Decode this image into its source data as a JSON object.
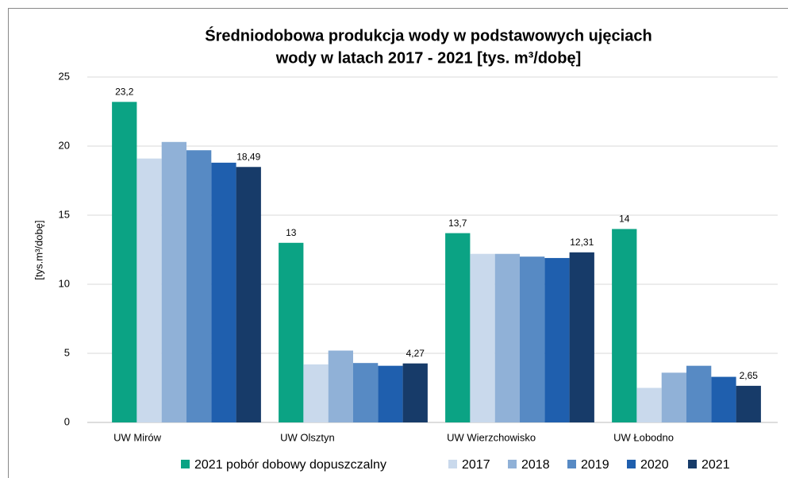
{
  "chart_data": {
    "type": "bar",
    "title": [
      "Średniodobowa produkcja wody w podstawowych ujęciach",
      "wody w latach 2017 - 2021 [tys. m³/dobę]"
    ],
    "y_label": "[tys.m³/dobę]",
    "categories": [
      "UW Mirów",
      "UW Olsztyn",
      "UW Wierzchowisko",
      "UW Łobodno"
    ],
    "series": [
      {
        "name": "2021 pobór dobowy dopuszczalny",
        "color": "#0ba384",
        "values": [
          23.2,
          13,
          13.7,
          14
        ],
        "value_labels": [
          "23,2",
          "13",
          "13,7",
          "14"
        ]
      },
      {
        "name": "2017",
        "color": "#c9d9ec",
        "values": [
          19.1,
          4.2,
          12.2,
          2.5
        ]
      },
      {
        "name": "2018",
        "color": "#90b1d7",
        "values": [
          20.3,
          5.2,
          12.2,
          3.6
        ]
      },
      {
        "name": "2019",
        "color": "#578ac4",
        "values": [
          19.7,
          4.3,
          12.0,
          4.1
        ]
      },
      {
        "name": "2020",
        "color": "#1f5fae",
        "values": [
          18.8,
          4.1,
          11.9,
          3.3
        ]
      },
      {
        "name": "2021",
        "color": "#173b69",
        "values": [
          18.49,
          4.27,
          12.31,
          2.65
        ],
        "value_labels": [
          "18,49",
          "4,27",
          "12,31",
          "2,65"
        ]
      }
    ],
    "ylim": [
      0,
      25
    ],
    "yticks": [
      0,
      5,
      10,
      15,
      20,
      25
    ],
    "grid": true,
    "legend": "bottom"
  }
}
